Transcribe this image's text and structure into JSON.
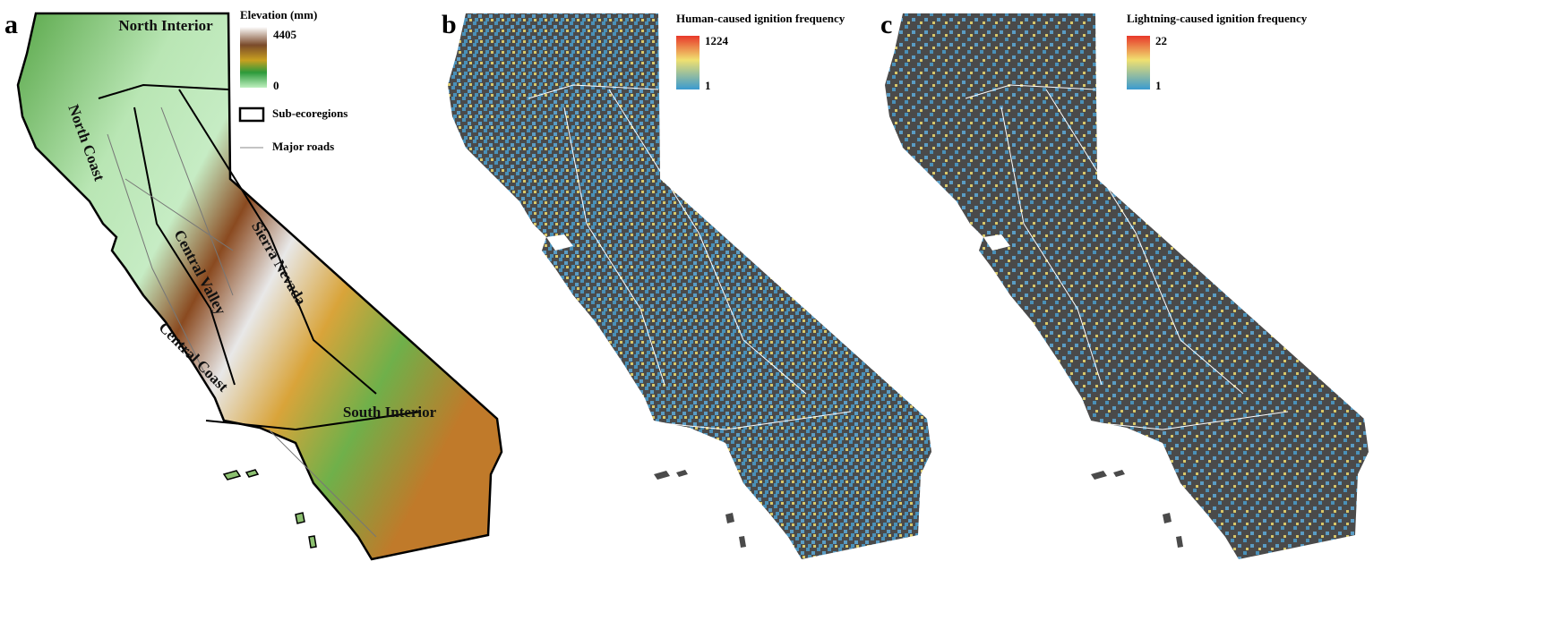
{
  "panels": [
    {
      "label": "a",
      "legend": {
        "title": "Elevation (mm)",
        "max": 4405,
        "min": 0,
        "items": [
          "Sub-ecoregions",
          "Major roads"
        ]
      },
      "regions": [
        "North Interior",
        "North Coast",
        "Central Valley",
        "Sierra Nevada",
        "Central Coast",
        "South Interior"
      ]
    },
    {
      "label": "b",
      "legend": {
        "title": "Human-caused ignition frequency",
        "max": 1224,
        "min": 1
      }
    },
    {
      "label": "c",
      "legend": {
        "title": "Lightning-caused ignition frequency",
        "max": 22,
        "min": 1
      }
    }
  ]
}
